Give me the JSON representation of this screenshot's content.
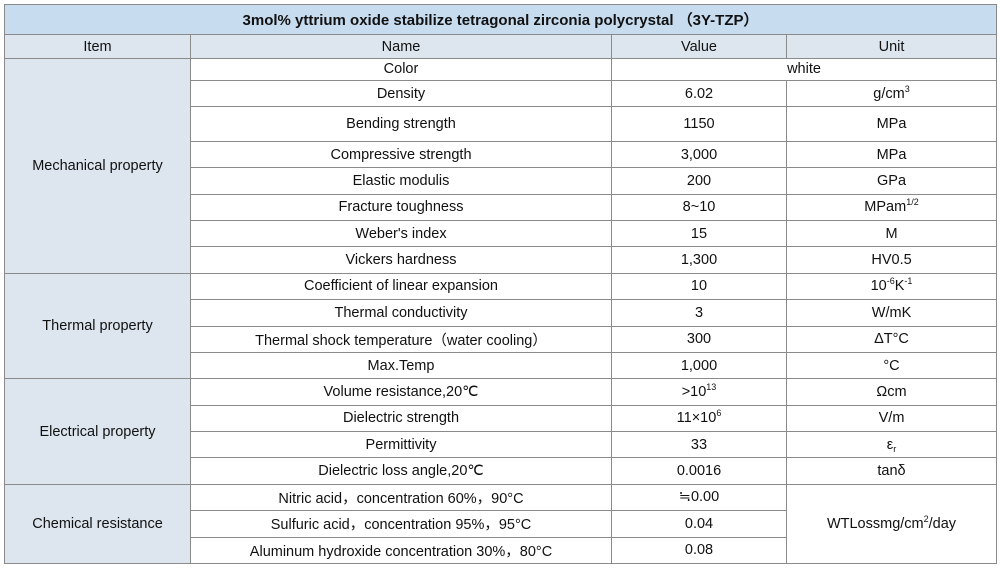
{
  "title": "3mol% yttrium oxide stabilize tetragonal zirconia polycrystal （3Y-TZP）",
  "headers": {
    "item": "Item",
    "name": "Name",
    "value": "Value",
    "unit": "Unit"
  },
  "groups": [
    {
      "label": "Mechanical property",
      "rows": [
        {
          "name": "Color",
          "value": "white",
          "unit": ""
        },
        {
          "name": "Density",
          "value": "6.02",
          "unit": "g/cm",
          "unit_sup": "3"
        },
        {
          "name": "Bending strength",
          "value": "1150",
          "unit": "MPa"
        },
        {
          "name": "Compressive strength",
          "value": "3,000",
          "unit": "MPa"
        },
        {
          "name": "Elastic modulis",
          "value": "200",
          "unit": "GPa"
        },
        {
          "name": "Fracture toughness",
          "value": "8~10",
          "unit": "MPam",
          "unit_sup": "1/2"
        },
        {
          "name": "Weber's index",
          "value": "15",
          "unit": "M"
        },
        {
          "name": "Vickers hardness",
          "value": "1,300",
          "unit": "HV0.5"
        }
      ]
    },
    {
      "label": "Thermal property",
      "rows": [
        {
          "name": "Coefficient of linear expansion",
          "value": "10",
          "unit": "10",
          "unit_sup": "-6",
          "unit_mid": "K",
          "unit_sup2": "-1"
        },
        {
          "name": "Thermal conductivity",
          "value": "3",
          "unit": "W/mK"
        },
        {
          "name": "Thermal shock temperature（water cooling）",
          "value": "300",
          "unit": "ΔT°C"
        },
        {
          "name": "Max.Temp",
          "value": "1,000",
          "unit": "°C"
        }
      ]
    },
    {
      "label": "Electrical property",
      "rows": [
        {
          "name": "Volume resistance,20℃",
          "value": ">10",
          "value_sup": "13",
          "unit": "Ωcm"
        },
        {
          "name": "Dielectric strength",
          "value": "11×10",
          "value_sup": "6",
          "unit": "V/m"
        },
        {
          "name": "Permittivity",
          "value": "33",
          "unit": "ε",
          "unit_sub": "r"
        },
        {
          "name": "Dielectric loss angle,20℃",
          "value": "0.0016",
          "unit": "tanδ"
        }
      ]
    },
    {
      "label": "Chemical resistance",
      "rows": [
        {
          "name": "Nitric acid，concentration 60%，90°C",
          "value": "≒0.00"
        },
        {
          "name": "Sulfuric acid，concentration 95%，95°C",
          "value": "0.04"
        },
        {
          "name": "Aluminum hydroxide concentration 30%，80°C",
          "value": "0.08"
        }
      ],
      "shared_unit": "WTLossmg/cm",
      "shared_unit_sup": "2",
      "shared_unit_tail": "/day"
    }
  ]
}
